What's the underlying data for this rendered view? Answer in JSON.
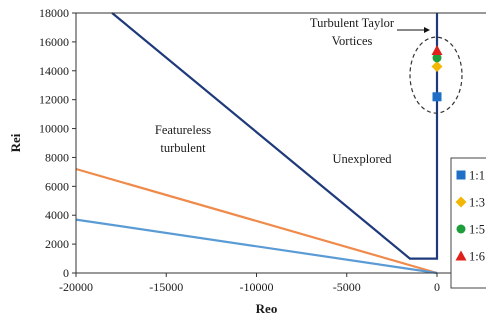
{
  "chart_data": {
    "type": "line",
    "xlabel": "Reo",
    "ylabel": "Rei",
    "xlim": [
      -20000,
      0
    ],
    "ylim": [
      0,
      18000
    ],
    "x_ticks": [
      -20000,
      -15000,
      -10000,
      -5000,
      0
    ],
    "y_ticks": [
      0,
      2000,
      4000,
      6000,
      8000,
      10000,
      12000,
      14000,
      16000,
      18000
    ],
    "x_tick_labels": [
      "-20000",
      "-15000",
      "-10000",
      "-5000",
      "0"
    ],
    "y_tick_labels": [
      "0",
      "2000",
      "4000",
      "6000",
      "8000",
      "10000",
      "12000",
      "14000",
      "16000",
      "18000"
    ],
    "grid": false,
    "annotations": {
      "featureless": [
        "Featureless",
        "turbulent"
      ],
      "unexplored": "Unexplored",
      "taylor": [
        "Turbulent Taylor",
        "Vortices"
      ]
    },
    "lines": [
      {
        "color": "#1f3a7a",
        "points": [
          [
            -18000,
            18000
          ],
          [
            -1500,
            1000
          ],
          [
            0,
            1000
          ],
          [
            0,
            18000
          ]
        ]
      },
      {
        "color": "#f08a4b",
        "points": [
          [
            -20000,
            7200
          ],
          [
            0,
            0
          ]
        ]
      },
      {
        "color": "#5b9bd5",
        "points": [
          [
            -20000,
            3700
          ],
          [
            0,
            0
          ]
        ]
      }
    ],
    "series": [
      {
        "name": "1:1",
        "marker": "square",
        "color": "#1f6fc6",
        "x": 0,
        "y": 12200
      },
      {
        "name": "1:3",
        "marker": "diamond",
        "color": "#f2b705",
        "x": 0,
        "y": 14300
      },
      {
        "name": "1:5",
        "marker": "circle",
        "color": "#1e9e3a",
        "x": 0,
        "y": 14900
      },
      {
        "name": "1:6",
        "marker": "triangle",
        "color": "#e0201b",
        "x": 0,
        "y": 15400
      }
    ]
  }
}
